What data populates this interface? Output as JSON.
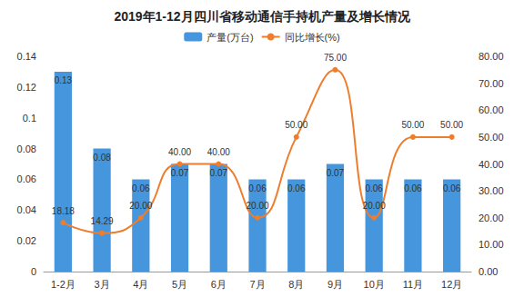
{
  "chart_data": {
    "type": "bar",
    "title": "2019年1-12月四川省移动通信手持机产量及增长情况",
    "categories": [
      "1-2月",
      "3月",
      "4月",
      "5月",
      "6月",
      "7月",
      "8月",
      "9月",
      "10月",
      "11月",
      "12月"
    ],
    "series": [
      {
        "name": "产量(万台)",
        "type": "bar",
        "color": "#4596dc",
        "values": [
          0.13,
          0.08,
          0.06,
          0.07,
          0.07,
          0.06,
          0.06,
          0.07,
          0.06,
          0.06,
          0.06
        ]
      },
      {
        "name": "同比增长(%)",
        "type": "line",
        "axis": "y2",
        "color": "#ee7d2e",
        "marker": "circle",
        "values": [
          18.18,
          14.29,
          20.0,
          40.0,
          40.0,
          20.0,
          50.0,
          75.0,
          20.0,
          50.0,
          50.0
        ],
        "value_labels": [
          "18.18",
          "14.29",
          "20.00",
          "40.00",
          "40.00",
          "20.00",
          "50.00",
          "75.00",
          "20.00",
          "50.00",
          "50.00"
        ]
      }
    ],
    "ylim": [
      0,
      0.14
    ],
    "yticks": [
      0,
      0.02,
      0.04,
      0.06,
      0.08,
      0.1,
      0.12,
      0.14
    ],
    "y2lim": [
      0,
      80
    ],
    "y2ticks": [
      {
        "value": 0,
        "label": "0.00"
      },
      {
        "value": 10,
        "label": "10.00"
      },
      {
        "value": 20,
        "label": "20.00"
      },
      {
        "value": 30,
        "label": "30.00"
      },
      {
        "value": 40,
        "label": "40.00"
      },
      {
        "value": 50,
        "label": "50.00"
      },
      {
        "value": 60,
        "label": "60.00"
      },
      {
        "value": 70,
        "label": "70.00"
      },
      {
        "value": 80,
        "label": "80.00"
      }
    ],
    "grid": false,
    "legend": "top",
    "data_labels": true
  }
}
